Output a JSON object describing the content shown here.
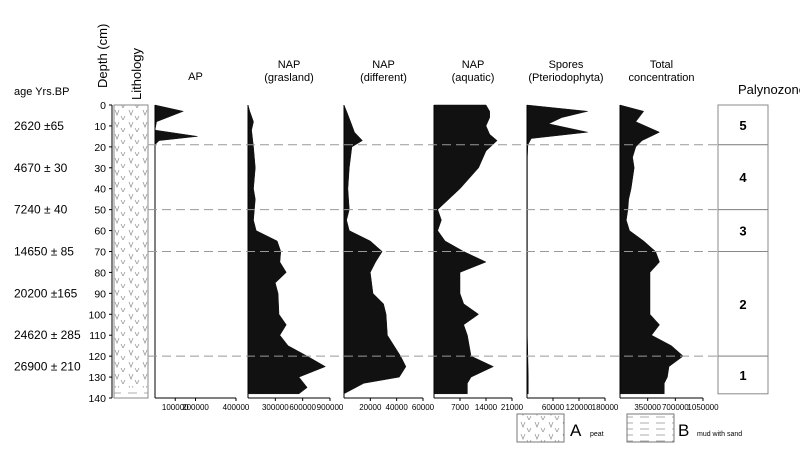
{
  "header": {
    "age_label": "age Yrs.BP",
    "depth_label": "Depth (cm)",
    "lithology_label": "Lithology",
    "palynozone_label": "Palynozone"
  },
  "ages": [
    {
      "text": "2620 ±65",
      "depth": 10
    },
    {
      "text": "4670 ± 30",
      "depth": 30
    },
    {
      "text": "7240 ± 40",
      "depth": 50
    },
    {
      "text": "14650 ± 85",
      "depth": 70
    },
    {
      "text": "20200 ±165",
      "depth": 90
    },
    {
      "text": "24620 ± 285",
      "depth": 110
    },
    {
      "text": "26900 ± 210",
      "depth": 125
    }
  ],
  "depth_axis": {
    "min": 0,
    "max": 140,
    "ticks": [
      "0",
      "10",
      "20",
      "30",
      "40",
      "50",
      "60",
      "70",
      "80",
      "90",
      "100",
      "110",
      "120",
      "130",
      "140"
    ]
  },
  "lithology": [
    {
      "unit": "A",
      "from": 0,
      "to": 135
    },
    {
      "unit": "B",
      "from": 135,
      "to": 140
    }
  ],
  "boundaries": [
    19,
    50,
    70,
    120
  ],
  "palynozones": [
    {
      "label": "5",
      "from": 0,
      "to": 19
    },
    {
      "label": "4",
      "from": 19,
      "to": 50
    },
    {
      "label": "3",
      "from": 50,
      "to": 70
    },
    {
      "label": "2",
      "from": 70,
      "to": 120
    },
    {
      "label": "1",
      "from": 120,
      "to": 138
    }
  ],
  "legend": {
    "a_letter": "A",
    "a_text": "peat",
    "b_letter": "B",
    "b_text": "mud with sand"
  },
  "colors": {
    "fill": "#111111",
    "dash": "#999999",
    "frame": "#888888"
  },
  "chart_data": [
    {
      "type": "area",
      "title": "AP",
      "x_ticks": [
        "100000",
        "200000",
        "400000"
      ],
      "xlim": [
        0,
        400000
      ],
      "depth": [
        0,
        3,
        8,
        12,
        15,
        17,
        19,
        25,
        35,
        50,
        70,
        90,
        110,
        130,
        138
      ],
      "values": [
        0,
        140000,
        8000,
        0,
        210000,
        20000,
        0,
        0,
        0,
        0,
        0,
        0,
        0,
        0,
        0
      ]
    },
    {
      "type": "area",
      "title": "NAP\n(grasland)",
      "x_ticks": [
        "300000",
        "600000",
        "900000"
      ],
      "xlim": [
        0,
        900000
      ],
      "depth": [
        0,
        3,
        8,
        12,
        20,
        30,
        40,
        45,
        50,
        55,
        60,
        65,
        70,
        75,
        80,
        85,
        90,
        100,
        105,
        110,
        115,
        120,
        125,
        130,
        135,
        138
      ],
      "values": [
        0,
        20000,
        60000,
        40000,
        60000,
        80000,
        60000,
        80000,
        70000,
        60000,
        90000,
        320000,
        360000,
        350000,
        420000,
        300000,
        330000,
        340000,
        420000,
        350000,
        440000,
        650000,
        850000,
        560000,
        650000,
        560000
      ]
    },
    {
      "type": "area",
      "title": "NAP\n(different)",
      "x_ticks": [
        "20000",
        "40000",
        "60000"
      ],
      "xlim": [
        0,
        60000
      ],
      "depth": [
        0,
        3,
        8,
        13,
        17,
        20,
        30,
        40,
        50,
        55,
        60,
        65,
        70,
        75,
        80,
        90,
        95,
        100,
        110,
        120,
        125,
        130,
        133,
        138
      ],
      "values": [
        0,
        2000,
        5000,
        8000,
        14000,
        6000,
        4000,
        3000,
        4000,
        2000,
        4000,
        20000,
        29000,
        24000,
        20000,
        22000,
        30000,
        32000,
        33000,
        43000,
        47000,
        42000,
        15000,
        0
      ]
    },
    {
      "type": "area",
      "title": "NAP\n(aquatic)",
      "x_ticks": [
        "7000",
        "14000",
        "21000"
      ],
      "xlim": [
        0,
        21000
      ],
      "depth": [
        0,
        3,
        6,
        10,
        14,
        17,
        22,
        30,
        40,
        50,
        55,
        60,
        65,
        70,
        75,
        80,
        90,
        95,
        100,
        105,
        110,
        120,
        125,
        130,
        133,
        138
      ],
      "values": [
        14000,
        15000,
        15000,
        14000,
        15000,
        17000,
        14000,
        12000,
        7000,
        1000,
        2000,
        1000,
        3000,
        8000,
        14000,
        7000,
        7000,
        8000,
        12000,
        8000,
        9000,
        10000,
        16000,
        10000,
        9000,
        9000
      ]
    },
    {
      "type": "area",
      "title": "Spores\n(Pteriodophyta)",
      "x_ticks": [
        "60000",
        "120000",
        "180000"
      ],
      "xlim": [
        0,
        180000
      ],
      "depth": [
        0,
        3,
        6,
        9,
        13,
        16,
        19,
        25,
        35,
        50,
        70,
        90,
        110,
        130,
        138
      ],
      "values": [
        0,
        140000,
        80000,
        50000,
        140000,
        10000,
        2000,
        1000,
        1000,
        1000,
        1000,
        1000,
        1000,
        3000,
        3000
      ]
    },
    {
      "type": "area",
      "title": "Total\nconcentration",
      "x_ticks": [
        "350000",
        "700000",
        "1050000"
      ],
      "xlim": [
        0,
        1050000
      ],
      "depth": [
        0,
        3,
        8,
        13,
        17,
        20,
        25,
        30,
        40,
        45,
        50,
        55,
        60,
        65,
        70,
        75,
        80,
        90,
        100,
        105,
        110,
        115,
        120,
        125,
        130,
        133,
        138
      ],
      "values": [
        0,
        300000,
        200000,
        500000,
        280000,
        200000,
        160000,
        180000,
        140000,
        110000,
        100000,
        80000,
        120000,
        300000,
        450000,
        500000,
        380000,
        380000,
        380000,
        500000,
        400000,
        650000,
        800000,
        620000,
        600000,
        560000,
        560000
      ]
    }
  ]
}
